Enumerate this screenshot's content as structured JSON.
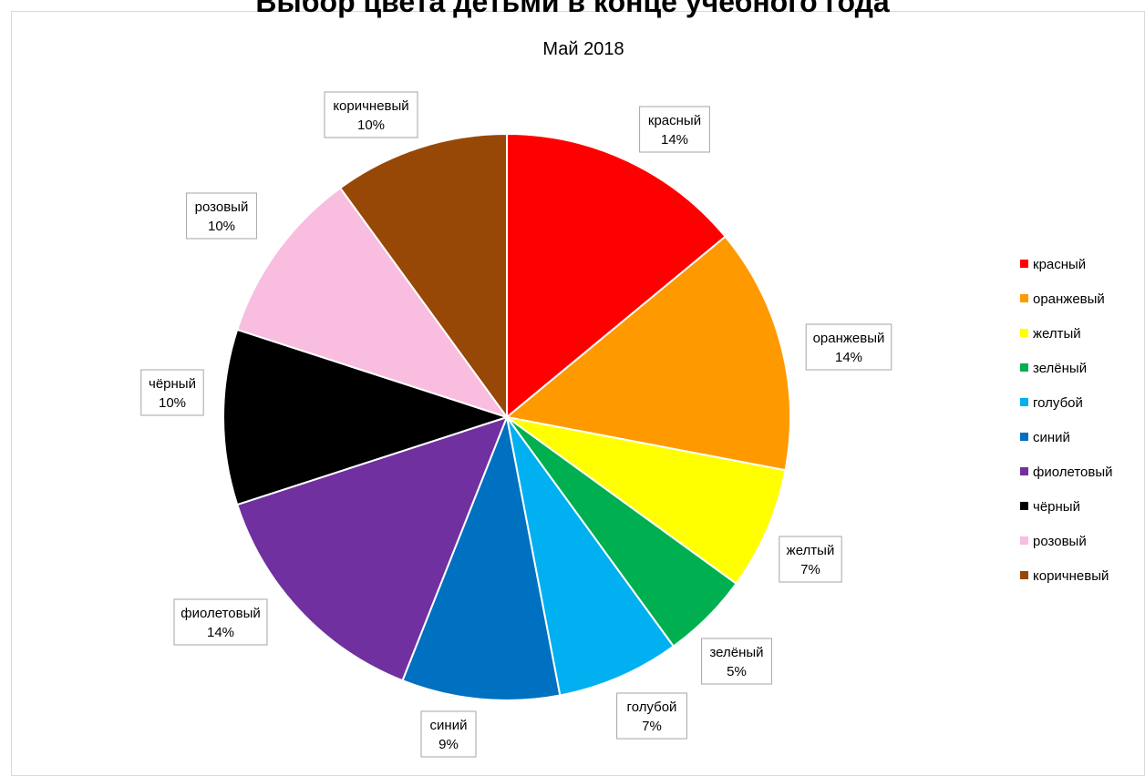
{
  "chart_data": {
    "type": "pie",
    "title": "Выбор цвета детьми в конце учебного года",
    "subtitle": "Май 2018",
    "legend_position": "right",
    "labels_show": "category and percent",
    "slices": [
      {
        "name": "красный",
        "value": 14,
        "label": "14%",
        "color": "#ff0000"
      },
      {
        "name": "оранжевый",
        "value": 14,
        "label": "14%",
        "color": "#ff9900"
      },
      {
        "name": "желтый",
        "value": 7,
        "label": "7%",
        "color": "#ffff00"
      },
      {
        "name": "зелёный",
        "value": 5,
        "label": "5%",
        "color": "#00b050"
      },
      {
        "name": "голубой",
        "value": 7,
        "label": "7%",
        "color": "#00b0f0"
      },
      {
        "name": "синий",
        "value": 9,
        "label": "9%",
        "color": "#0070c0"
      },
      {
        "name": "фиолетовый",
        "value": 14,
        "label": "14%",
        "color": "#7030a0"
      },
      {
        "name": "чёрный",
        "value": 10,
        "label": "10%",
        "color": "#000000"
      },
      {
        "name": "розовый",
        "value": 10,
        "label": "10%",
        "color": "#f9bde0"
      },
      {
        "name": "коричневый",
        "value": 10,
        "label": "10%",
        "color": "#974806"
      }
    ]
  }
}
